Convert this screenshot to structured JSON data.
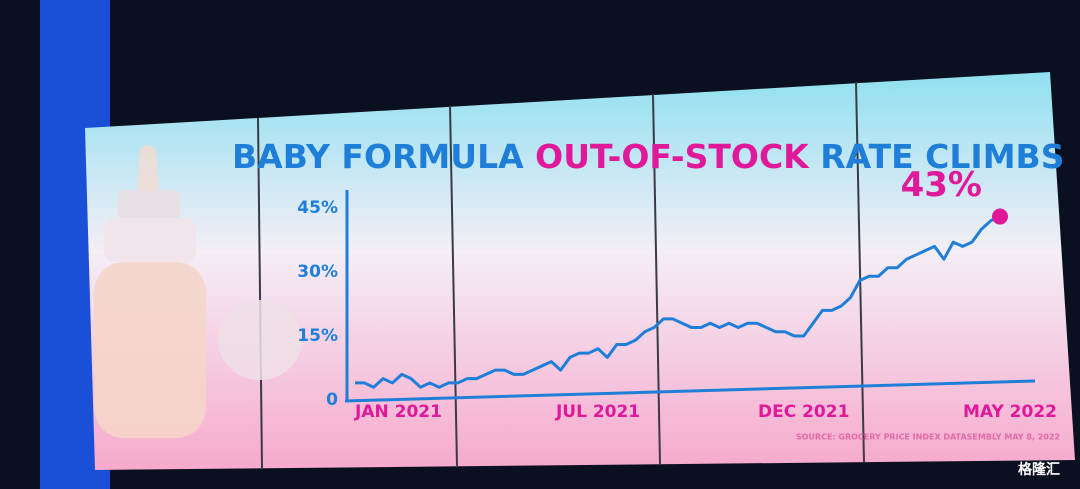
{
  "chart_data": {
    "type": "line",
    "title": [
      "BABY FORMULA",
      "OUT-OF-STOCK",
      "RATE CLIMBS"
    ],
    "categories": [
      "JAN 2021",
      null,
      null,
      null,
      null,
      null,
      null,
      null,
      null,
      null,
      null,
      null,
      null,
      null,
      null,
      null,
      null,
      null,
      null,
      null,
      null,
      null,
      null,
      null,
      null,
      null,
      "JUL 2021",
      null,
      null,
      null,
      null,
      null,
      null,
      null,
      null,
      null,
      null,
      null,
      null,
      null,
      null,
      null,
      null,
      null,
      null,
      null,
      null,
      null,
      "DEC 2021",
      null,
      null,
      null,
      null,
      null,
      null,
      null,
      null,
      null,
      null,
      null,
      null,
      null,
      null,
      null,
      null,
      null,
      null,
      null,
      null,
      "MAY 2022"
    ],
    "series": [
      {
        "name": "Out-of-stock rate",
        "color": "#1f7fd8",
        "values": [
          4,
          4,
          3,
          5,
          4,
          6,
          5,
          3,
          4,
          3,
          4,
          4,
          5,
          5,
          6,
          7,
          7,
          6,
          6,
          7,
          8,
          9,
          7,
          10,
          11,
          11,
          12,
          10,
          13,
          13,
          14,
          16,
          17,
          19,
          19,
          18,
          17,
          17,
          18,
          17,
          18,
          17,
          18,
          18,
          17,
          16,
          16,
          15,
          15,
          18,
          21,
          21,
          22,
          24,
          28,
          29,
          29,
          31,
          31,
          33,
          34,
          35,
          36,
          33,
          37,
          36,
          37,
          40,
          42,
          43
        ],
        "value_labels": [
          null,
          null,
          null,
          null,
          null,
          null,
          null,
          null,
          null,
          null,
          null,
          null,
          null,
          null,
          null,
          null,
          null,
          null,
          null,
          null,
          null,
          null,
          null,
          null,
          null,
          null,
          null,
          null,
          null,
          null,
          null,
          null,
          null,
          null,
          null,
          null,
          null,
          null,
          null,
          null,
          null,
          null,
          null,
          null,
          null,
          null,
          null,
          null,
          null,
          null,
          null,
          null,
          null,
          null,
          null,
          null,
          null,
          null,
          null,
          null,
          null,
          null,
          null,
          null,
          null,
          null,
          null,
          null,
          null,
          "43%"
        ]
      }
    ],
    "highlight_color": "#e0189a",
    "ylim": [
      0,
      45
    ],
    "yticks": [
      0,
      {
        "value": 15,
        "label": "15%"
      },
      {
        "value": 30,
        "label": "30%"
      },
      {
        "value": 45,
        "label": "45%"
      }
    ],
    "source": "SOURCE: GROCERY PRICE INDEX DATASEMBLY MAY 8, 2022",
    "watermark": "格隆汇"
  }
}
